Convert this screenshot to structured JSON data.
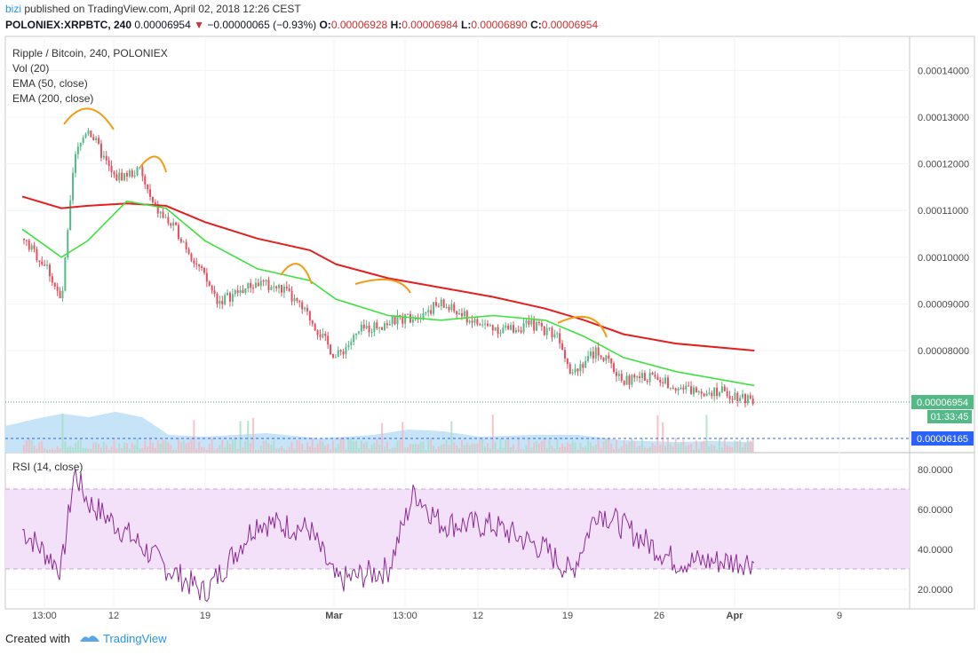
{
  "header": {
    "author": "bizi",
    "published_text": "published on TradingView.com, April 02, 2018 12:26 CEST",
    "symbol": "POLONIEX:XRPBTC, 240",
    "last_price": "0.00006954",
    "change": "−0.00000065 (−0.93%)",
    "open_label": "O:",
    "open": "0.00006928",
    "high_label": "H:",
    "high": "0.00006984",
    "low_label": "L:",
    "low": "0.00006890",
    "close_label": "C:",
    "close": "0.00006954"
  },
  "legend": {
    "title": "Ripple / Bitcoin, 240, POLONIEX",
    "vol": "Vol (20)",
    "ema50": "EMA (50, close)",
    "ema200": "EMA (200, close)",
    "rsi": "RSI (14, close)"
  },
  "price_axis": {
    "labels": [
      "0.00014000",
      "0.00013000",
      "0.00012000",
      "0.00011000",
      "0.00010000",
      "0.00009000",
      "0.00008000"
    ],
    "current_price": "0.00006954",
    "countdown": "01:33:45",
    "volume_ma": "0.00006165"
  },
  "rsi_axis": {
    "labels": [
      "80.0000",
      "60.0000",
      "40.0000",
      "20.0000"
    ]
  },
  "time_axis": {
    "labels": [
      "13:00",
      "12",
      "19",
      "Mar",
      "13:00",
      "12",
      "19",
      "26",
      "Apr",
      "9"
    ]
  },
  "footer": {
    "created_with": "Created with",
    "brand": "TradingView"
  },
  "colors": {
    "up": "#53b987",
    "down": "#eb4d5c",
    "ema50": "#3be33b",
    "ema200": "#e61e1e",
    "rsi": "#8c2a96",
    "rsi_band": "#f3e1fa",
    "arc": "#f39c12",
    "accent": "#2196f3"
  },
  "chart_data": [
    {
      "type": "line",
      "title": "Ripple / Bitcoin, 240, POLONIEX",
      "series": [
        {
          "name": "EMA (50, close)",
          "x": [
            "Feb 05",
            "Feb 08",
            "Feb 10",
            "Feb 13",
            "Feb 16",
            "Feb 19",
            "Feb 23",
            "Feb 27",
            "Mar 01",
            "Mar 05",
            "Mar 09",
            "Mar 13",
            "Mar 17",
            "Mar 20",
            "Mar 23",
            "Mar 27",
            "Apr 02"
          ],
          "values": [
            0.000106,
            0.0001,
            0.0001035,
            0.000112,
            0.0001105,
            0.0001035,
            9.75e-05,
            9.5e-05,
            9.1e-05,
            8.75e-05,
            8.65e-05,
            8.75e-05,
            8.65e-05,
            8.3e-05,
            7.85e-05,
            7.55e-05,
            7.25e-05
          ]
        },
        {
          "name": "EMA (200, close)",
          "x": [
            "Feb 05",
            "Feb 08",
            "Feb 10",
            "Feb 13",
            "Feb 16",
            "Feb 19",
            "Feb 23",
            "Feb 27",
            "Mar 01",
            "Mar 05",
            "Mar 09",
            "Mar 13",
            "Mar 17",
            "Mar 20",
            "Mar 23",
            "Mar 27",
            "Apr 02"
          ],
          "values": [
            0.000113,
            0.0001105,
            0.000111,
            0.0001115,
            0.000111,
            0.0001075,
            0.000104,
            0.0001015,
            9.85e-05,
            9.55e-05,
            9.35e-05,
            9.15e-05,
            8.9e-05,
            8.65e-05,
            8.35e-05,
            8.15e-05,
            8e-05
          ]
        },
        {
          "name": "RSI (14, close)",
          "x": [
            "Feb 05",
            "Feb 08",
            "Feb 09",
            "Feb 10",
            "Feb 13",
            "Feb 16",
            "Feb 19",
            "Feb 23",
            "Feb 27",
            "Mar 01",
            "Mar 05",
            "Mar 07",
            "Mar 09",
            "Mar 13",
            "Mar 17",
            "Mar 19",
            "Mar 21",
            "Mar 27",
            "Apr 02"
          ],
          "values": [
            50,
            30,
            79,
            64,
            48,
            31,
            18,
            54,
            50,
            24,
            30,
            69,
            53,
            52,
            40,
            28,
            60,
            34,
            34
          ]
        }
      ],
      "close_path": {
        "x": [
          "Feb 05",
          "Feb 07",
          "Feb 08",
          "Feb 09",
          "Feb 10",
          "Feb 12",
          "Feb 14",
          "Feb 15",
          "Feb 17",
          "Feb 20",
          "Feb 23",
          "Feb 25",
          "Feb 27",
          "Mar 01",
          "Mar 03",
          "Mar 05",
          "Mar 07",
          "Mar 09",
          "Mar 12",
          "Mar 14",
          "Mar 16",
          "Mar 18",
          "Mar 19",
          "Mar 21",
          "Mar 23",
          "Mar 25",
          "Mar 28",
          "Mar 30",
          "Apr 02"
        ],
        "values": [
          0.000104,
          9.75e-05,
          9e-05,
          0.000121,
          0.000128,
          0.000117,
          0.0001185,
          0.000111,
          0.000105,
          9.05e-05,
          9.45e-05,
          9.3e-05,
          8.7e-05,
          7.85e-05,
          8.45e-05,
          8.6e-05,
          8.75e-05,
          9e-05,
          8.55e-05,
          8.45e-05,
          8.55e-05,
          8.35e-05,
          7.55e-05,
          8e-05,
          7.35e-05,
          7.45e-05,
          7.15e-05,
          7.15e-05,
          6.954e-05
        ]
      },
      "y_axis_ticks": [
        "0.00014000",
        "0.00013000",
        "0.00012000",
        "0.00011000",
        "0.00010000",
        "0.00009000",
        "0.00008000"
      ],
      "x_axis_ticks": [
        "13:00",
        "12",
        "19",
        "Mar",
        "13:00",
        "12",
        "19",
        "26",
        "Apr",
        "9"
      ],
      "rsi_ticks": [
        "80.0000",
        "60.0000",
        "40.0000",
        "20.0000"
      ],
      "rsi_band": [
        30,
        70
      ]
    }
  ]
}
